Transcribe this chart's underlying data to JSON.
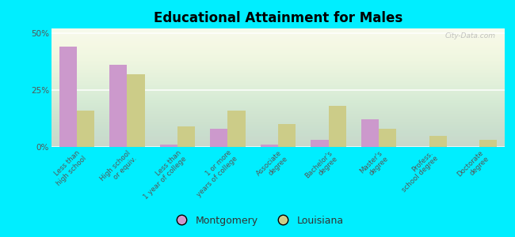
{
  "title": "Educational Attainment for Males",
  "categories": [
    "Less than\nhigh school",
    "High school\nor equiv.",
    "Less than\n1 year of college",
    "1 or more\nyears of college",
    "Associate\ndegree",
    "Bachelor's\ndegree",
    "Master's\ndegree",
    "Profess.\nschool degree",
    "Doctorate\ndegree"
  ],
  "montgomery_values": [
    44,
    36,
    1,
    8,
    1,
    3,
    12,
    0,
    0
  ],
  "louisiana_values": [
    16,
    32,
    9,
    16,
    10,
    18,
    8,
    5,
    3
  ],
  "montgomery_color": "#cc99cc",
  "louisiana_color": "#cccc88",
  "bg_outer": "#00eeff",
  "bg_chart_top": "#f5f8ee",
  "bg_chart_bottom": "#e8f0d8",
  "ylim": [
    0,
    52
  ],
  "yticks": [
    0,
    25,
    50
  ],
  "ytick_labels": [
    "0%",
    "25%",
    "50%"
  ],
  "bar_width": 0.35,
  "legend_montgomery": "Montgomery",
  "legend_louisiana": "Louisiana",
  "watermark": "City-Data.com"
}
